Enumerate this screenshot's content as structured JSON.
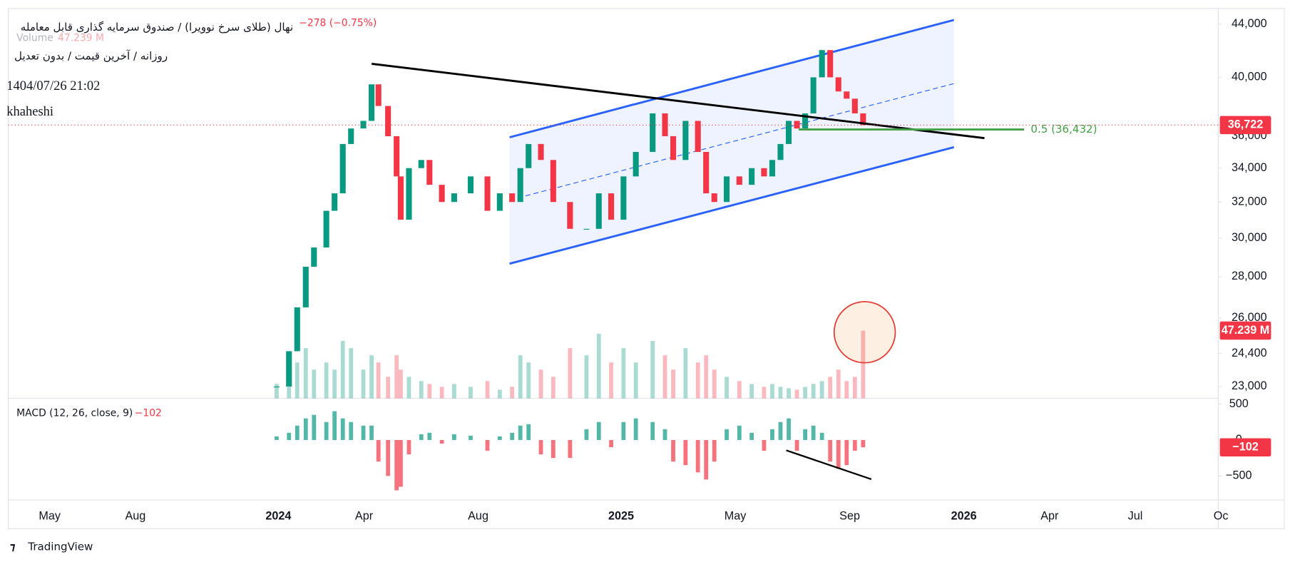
{
  "chart_data": {
    "type": "candlestick",
    "title": "نهال (طلای سرخ نوویرا) / صندوق سرمایه گذاری قابل معامله",
    "change": "−278 (−0.75%)",
    "subtitle": "روزانه / آخرین قیمت / بدون تعدیل",
    "timestamp": "1404/07/26 21:02",
    "author": "khaheshi",
    "brand": "TradingView",
    "log_scale": true,
    "up_color": "#089981",
    "down_color": "#f23645",
    "xlim": [
      2023.212,
      2026.742
    ],
    "xticks": [
      {
        "value": 2023.333,
        "label": "May"
      },
      {
        "value": 2023.583,
        "label": "Aug"
      },
      {
        "value": 2024,
        "label": "2024"
      },
      {
        "value": 2024.25,
        "label": "Apr"
      },
      {
        "value": 2024.583,
        "label": "Aug"
      },
      {
        "value": 2025,
        "label": "2025"
      },
      {
        "value": 2025.333,
        "label": "May"
      },
      {
        "value": 2025.667,
        "label": "Sep"
      },
      {
        "value": 2026,
        "label": "2026"
      },
      {
        "value": 2026.25,
        "label": "Apr"
      },
      {
        "value": 2026.5,
        "label": "Jul"
      },
      {
        "value": 2026.75,
        "label": "Oc"
      }
    ],
    "ylim": [
      22520,
      45250
    ],
    "yticks": [
      {
        "value": 23000,
        "label": "23,000"
      },
      {
        "value": 24400,
        "label": "24,400"
      },
      {
        "value": 26000,
        "label": "26,000"
      },
      {
        "value": 28000,
        "label": "28,000"
      },
      {
        "value": 30000,
        "label": "30,000"
      },
      {
        "value": 32000,
        "label": "32,000"
      },
      {
        "value": 34000,
        "label": "34,000"
      },
      {
        "value": 36000,
        "label": "36,000"
      },
      {
        "value": 40000,
        "label": "40,000"
      },
      {
        "value": 44000,
        "label": "44,000"
      }
    ],
    "x": [
      2023.995,
      2024.031,
      2024.055,
      2024.08,
      2024.104,
      2024.14,
      2024.164,
      2024.188,
      2024.212,
      2024.248,
      2024.272,
      2024.292,
      2024.32,
      2024.345,
      2024.357,
      2024.381,
      2024.417,
      2024.441,
      2024.477,
      2024.513,
      2024.561,
      2024.61,
      2024.646,
      2024.682,
      2024.706,
      2024.73,
      2024.766,
      2024.802,
      2024.851,
      2024.899,
      2024.935,
      2024.971,
      2025.007,
      2025.043,
      2025.092,
      2025.128,
      2025.152,
      2025.188,
      2025.224,
      2025.248,
      2025.272,
      2025.308,
      2025.345,
      2025.381,
      2025.417,
      2025.441,
      2025.465,
      2025.489,
      2025.513,
      2025.537,
      2025.561,
      2025.586,
      2025.61,
      2025.634,
      2025.658,
      2025.682,
      2025.706
    ],
    "close": [
      23000,
      24500,
      26500,
      28500,
      29500,
      31500,
      32500,
      35500,
      36500,
      37000,
      39500,
      38000,
      36000,
      33500,
      31000,
      34000,
      34500,
      33000,
      32000,
      32500,
      33500,
      31500,
      32500,
      32000,
      34000,
      35500,
      34500,
      32000,
      30500,
      30500,
      32500,
      31000,
      33500,
      35000,
      37500,
      36000,
      34500,
      37000,
      35000,
      32500,
      32000,
      33500,
      33000,
      34000,
      33500,
      34500,
      35500,
      37000,
      36500,
      37500,
      40000,
      42000,
      40000,
      39000,
      38500,
      37500,
      36722
    ],
    "last_price": {
      "value": 36722,
      "label": "36,722"
    },
    "annotations": [
      {
        "label": "0.5 (36,432)",
        "value": 36432,
        "color": "#43a047"
      }
    ],
    "volume": {
      "name": "Volume",
      "value_label": "47.239 M",
      "ylim": [
        0,
        272
      ],
      "values": [
        10,
        30,
        25,
        35,
        20,
        25,
        20,
        40,
        35,
        20,
        30,
        25,
        15,
        30,
        20,
        15,
        12,
        10,
        8,
        10,
        8,
        12,
        6,
        8,
        30,
        25,
        20,
        15,
        35,
        30,
        45,
        25,
        35,
        25,
        40,
        30,
        20,
        35,
        25,
        30,
        20,
        15,
        12,
        10,
        8,
        10,
        8,
        7,
        6,
        8,
        10,
        12,
        15,
        20,
        12,
        15,
        47.239
      ]
    },
    "macd": {
      "name": "MACD (12, 26, close, 9)",
      "value_label": "−102",
      "ylim": [
        -833,
        580
      ],
      "yticks": [
        500,
        0,
        {
          "value": -500,
          "label": "−500"
        }
      ],
      "values": [
        50,
        100,
        200,
        300,
        350,
        250,
        400,
        300,
        250,
        200,
        200,
        -300,
        -500,
        -700,
        -650,
        -200,
        80,
        100,
        -50,
        80,
        60,
        -150,
        50,
        100,
        200,
        220,
        -200,
        -250,
        -250,
        150,
        250,
        -100,
        250,
        300,
        250,
        150,
        -300,
        -350,
        -450,
        -550,
        -300,
        150,
        200,
        100,
        -150,
        150,
        250,
        300,
        -150,
        150,
        200,
        100,
        -300,
        -400,
        -350,
        -150,
        -102
      ]
    }
  }
}
